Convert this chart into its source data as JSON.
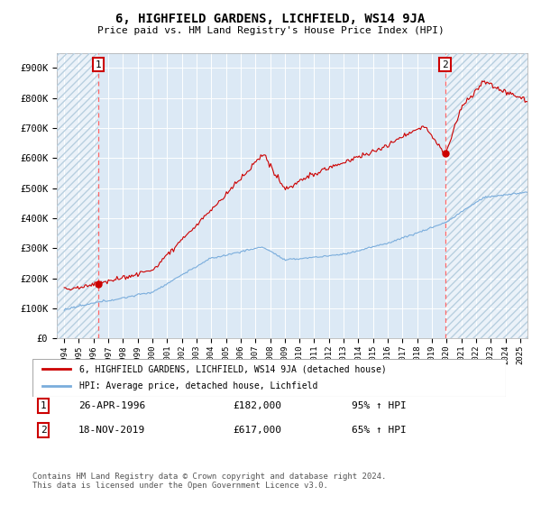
{
  "title": "6, HIGHFIELD GARDENS, LICHFIELD, WS14 9JA",
  "subtitle": "Price paid vs. HM Land Registry's House Price Index (HPI)",
  "hpi_label": "HPI: Average price, detached house, Lichfield",
  "price_label": "6, HIGHFIELD GARDENS, LICHFIELD, WS14 9JA (detached house)",
  "sale1_date": "26-APR-1996",
  "sale1_price": 182000,
  "sale1_pct": "95% ↑ HPI",
  "sale2_date": "18-NOV-2019",
  "sale2_price": 617000,
  "sale2_pct": "65% ↑ HPI",
  "sale1_year": 1996.32,
  "sale2_year": 2019.9,
  "xmin": 1993.5,
  "xmax": 2025.5,
  "ymin": 0,
  "ymax": 950000,
  "bg_color": "#dce9f5",
  "hatch_color": "#b8cfe0",
  "grid_color": "#ffffff",
  "price_line_color": "#cc0000",
  "hpi_line_color": "#7aaddc",
  "dashed_line_color": "#ff6666",
  "footnote": "Contains HM Land Registry data © Crown copyright and database right 2024.\nThis data is licensed under the Open Government Licence v3.0."
}
